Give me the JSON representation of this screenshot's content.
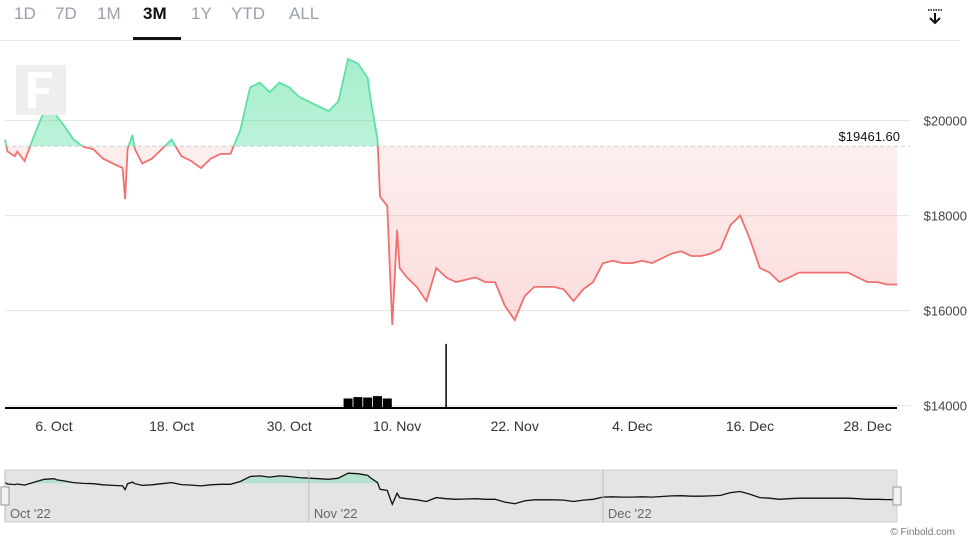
{
  "ranges": [
    {
      "label": "1D"
    },
    {
      "label": "7D"
    },
    {
      "label": "1M"
    },
    {
      "label": "3M",
      "active": true
    },
    {
      "label": "1Y"
    },
    {
      "label": "YTD"
    },
    {
      "label": "ALL"
    }
  ],
  "icons": {
    "download": "download-icon",
    "logo": "finbold-logo"
  },
  "reference_label": "$19461.60",
  "credit": "© Finbold.com",
  "colors": {
    "up": "#5ee0a4",
    "down": "#f07070",
    "volume": "#000000"
  },
  "chart_data": {
    "type": "area",
    "baseline": 19461.6,
    "x_range": [
      "2022-10-01",
      "2022-12-31"
    ],
    "ylim": [
      13950,
      21150
    ],
    "y_ticks": [
      {
        "value": 14000,
        "label": "$14000"
      },
      {
        "value": 16000,
        "label": "$16000"
      },
      {
        "value": 18000,
        "label": "$18000"
      },
      {
        "value": 20000,
        "label": "$20000"
      }
    ],
    "x_ticks": [
      {
        "x": "2022-10-06",
        "label": "6. Oct"
      },
      {
        "x": "2022-10-18",
        "label": "18. Oct"
      },
      {
        "x": "2022-10-30",
        "label": "30. Oct"
      },
      {
        "x": "2022-11-10",
        "label": "10. Nov"
      },
      {
        "x": "2022-11-22",
        "label": "22. Nov"
      },
      {
        "x": "2022-12-04",
        "label": "4. Dec"
      },
      {
        "x": "2022-12-16",
        "label": "16. Dec"
      },
      {
        "x": "2022-12-28",
        "label": "28. Dec"
      }
    ],
    "navigator_labels": [
      {
        "x": "2022-10-01",
        "label": "Oct '22"
      },
      {
        "x": "2022-11-01",
        "label": "Nov '22"
      },
      {
        "x": "2022-12-01",
        "label": "Dec '22"
      }
    ],
    "series": [
      {
        "values": [
          [
            "2022-10-01",
            19600
          ],
          [
            "2022-10-01",
            19350
          ],
          [
            "2022-10-02",
            19250
          ],
          [
            "2022-10-02",
            19350
          ],
          [
            "2022-10-03",
            19150
          ],
          [
            "2022-10-04",
            19700
          ],
          [
            "2022-10-05",
            20200
          ],
          [
            "2022-10-06",
            20300
          ],
          [
            "2022-10-06",
            20100
          ],
          [
            "2022-10-07",
            19900
          ],
          [
            "2022-10-08",
            19600
          ],
          [
            "2022-10-09",
            19450
          ],
          [
            "2022-10-10",
            19400
          ],
          [
            "2022-10-11",
            19200
          ],
          [
            "2022-10-12",
            19100
          ],
          [
            "2022-10-13",
            19000
          ],
          [
            "2022-10-13",
            18350
          ],
          [
            "2022-10-13",
            19400
          ],
          [
            "2022-10-14",
            19700
          ],
          [
            "2022-10-14",
            19400
          ],
          [
            "2022-10-15",
            19100
          ],
          [
            "2022-10-16",
            19200
          ],
          [
            "2022-10-17",
            19400
          ],
          [
            "2022-10-18",
            19600
          ],
          [
            "2022-10-19",
            19250
          ],
          [
            "2022-10-20",
            19150
          ],
          [
            "2022-10-21",
            19000
          ],
          [
            "2022-10-22",
            19200
          ],
          [
            "2022-10-23",
            19300
          ],
          [
            "2022-10-24",
            19300
          ],
          [
            "2022-10-25",
            19800
          ],
          [
            "2022-10-26",
            20700
          ],
          [
            "2022-10-27",
            20800
          ],
          [
            "2022-10-28",
            20600
          ],
          [
            "2022-10-29",
            20800
          ],
          [
            "2022-10-30",
            20700
          ],
          [
            "2022-10-31",
            20500
          ],
          [
            "2022-11-01",
            20400
          ],
          [
            "2022-11-02",
            20300
          ],
          [
            "2022-11-03",
            20200
          ],
          [
            "2022-11-04",
            20400
          ],
          [
            "2022-11-05",
            21300
          ],
          [
            "2022-11-06",
            21200
          ],
          [
            "2022-11-07",
            20900
          ],
          [
            "2022-11-07",
            20500
          ],
          [
            "2022-11-08",
            19600
          ],
          [
            "2022-11-08",
            18400
          ],
          [
            "2022-11-09",
            18200
          ],
          [
            "2022-11-09",
            16900
          ],
          [
            "2022-11-09",
            15700
          ],
          [
            "2022-11-10",
            17700
          ],
          [
            "2022-11-10",
            16900
          ],
          [
            "2022-11-11",
            16700
          ],
          [
            "2022-11-12",
            16500
          ],
          [
            "2022-11-13",
            16200
          ],
          [
            "2022-11-14",
            16900
          ],
          [
            "2022-11-15",
            16700
          ],
          [
            "2022-11-16",
            16600
          ],
          [
            "2022-11-17",
            16650
          ],
          [
            "2022-11-18",
            16700
          ],
          [
            "2022-11-19",
            16600
          ],
          [
            "2022-11-20",
            16600
          ],
          [
            "2022-11-21",
            16100
          ],
          [
            "2022-11-22",
            15800
          ],
          [
            "2022-11-23",
            16300
          ],
          [
            "2022-11-24",
            16500
          ],
          [
            "2022-11-25",
            16500
          ],
          [
            "2022-11-26",
            16500
          ],
          [
            "2022-11-27",
            16450
          ],
          [
            "2022-11-28",
            16200
          ],
          [
            "2022-11-29",
            16450
          ],
          [
            "2022-11-30",
            16600
          ],
          [
            "2022-12-01",
            17000
          ],
          [
            "2022-12-02",
            17050
          ],
          [
            "2022-12-03",
            17000
          ],
          [
            "2022-12-04",
            17000
          ],
          [
            "2022-12-05",
            17050
          ],
          [
            "2022-12-06",
            17000
          ],
          [
            "2022-12-07",
            17100
          ],
          [
            "2022-12-08",
            17200
          ],
          [
            "2022-12-09",
            17250
          ],
          [
            "2022-12-10",
            17150
          ],
          [
            "2022-12-11",
            17150
          ],
          [
            "2022-12-12",
            17200
          ],
          [
            "2022-12-13",
            17300
          ],
          [
            "2022-12-14",
            17800
          ],
          [
            "2022-12-15",
            18000
          ],
          [
            "2022-12-16",
            17500
          ],
          [
            "2022-12-17",
            16900
          ],
          [
            "2022-12-18",
            16800
          ],
          [
            "2022-12-19",
            16600
          ],
          [
            "2022-12-20",
            16700
          ],
          [
            "2022-12-21",
            16800
          ],
          [
            "2022-12-22",
            16800
          ],
          [
            "2022-12-23",
            16800
          ],
          [
            "2022-12-24",
            16800
          ],
          [
            "2022-12-25",
            16800
          ],
          [
            "2022-12-26",
            16800
          ],
          [
            "2022-12-27",
            16700
          ],
          [
            "2022-12-28",
            16600
          ],
          [
            "2022-12-29",
            16600
          ],
          [
            "2022-12-30",
            16550
          ],
          [
            "2022-12-31",
            16550
          ]
        ]
      }
    ],
    "volume_bars": [
      [
        "2022-11-05",
        14150
      ],
      [
        "2022-11-06",
        14180
      ],
      [
        "2022-11-07",
        14170
      ],
      [
        "2022-11-08",
        14200
      ],
      [
        "2022-11-09",
        14150
      ],
      [
        "2022-11-15",
        15300
      ]
    ]
  }
}
